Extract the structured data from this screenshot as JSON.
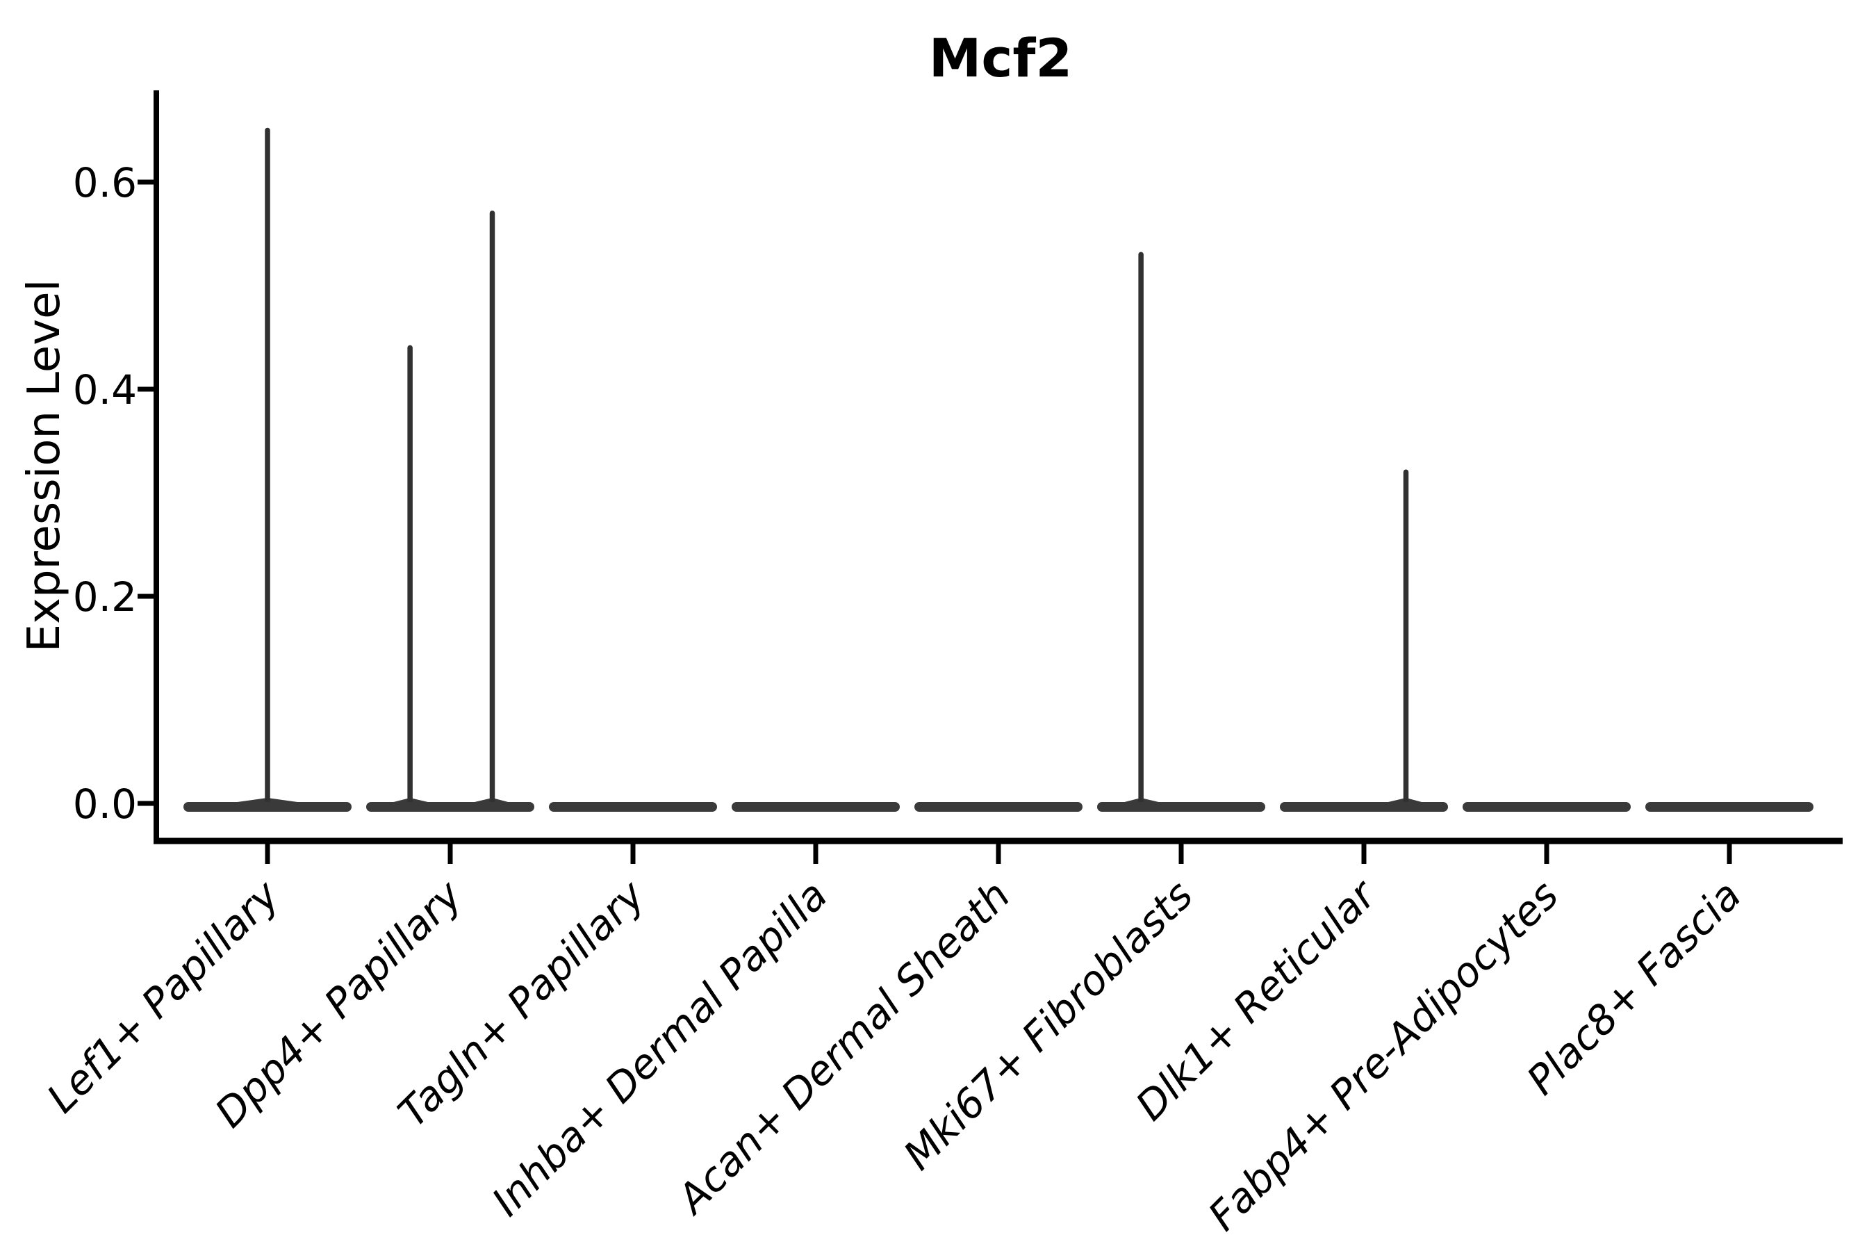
{
  "chart_data": {
    "type": "violin",
    "title": "Mcf2",
    "xlabel": "",
    "ylabel": "Expression Level",
    "ylim": [
      0,
      0.69
    ],
    "yticks": [
      0.0,
      0.2,
      0.4,
      0.6
    ],
    "ytick_labels": [
      "0.0",
      "0.2",
      "0.4",
      "0.6"
    ],
    "grid": false,
    "legend": "none",
    "colors": {
      "violin": "#3a3a3a",
      "spike": "#313131",
      "axis": "#000000",
      "text": "#000000",
      "background": "#ffffff"
    },
    "categories": [
      "Lef1+ Papillary",
      "Dpp4+ Papillary",
      "Tagln+ Papillary",
      "Inhba+ Dermal Papilla",
      "Acan+ Dermal Sheath",
      "Mki67+ Fibroblasts",
      "Dlk1+ Reticular",
      "Fabp4+ Pre-Adipocytes",
      "Plac8+ Fascia"
    ],
    "violins": [
      {
        "category": "Lef1+ Papillary",
        "base_value": 0.0,
        "spikes": [
          {
            "value": 0.65,
            "x_offset_frac": 0.0
          }
        ]
      },
      {
        "category": "Dpp4+ Papillary",
        "base_value": 0.0,
        "spikes": [
          {
            "value": 0.44,
            "x_offset_frac": -0.22
          },
          {
            "value": 0.57,
            "x_offset_frac": 0.23
          }
        ]
      },
      {
        "category": "Tagln+ Papillary",
        "base_value": 0.0,
        "spikes": []
      },
      {
        "category": "Inhba+ Dermal Papilla",
        "base_value": 0.0,
        "spikes": []
      },
      {
        "category": "Acan+ Dermal Sheath",
        "base_value": 0.0,
        "spikes": []
      },
      {
        "category": "Mki67+ Fibroblasts",
        "base_value": 0.0,
        "spikes": [
          {
            "value": 0.53,
            "x_offset_frac": -0.22
          }
        ]
      },
      {
        "category": "Dlk1+ Reticular",
        "base_value": 0.0,
        "spikes": [
          {
            "value": 0.32,
            "x_offset_frac": 0.23
          }
        ]
      },
      {
        "category": "Fabp4+ Pre-Adipocytes",
        "base_value": 0.0,
        "spikes": []
      },
      {
        "category": "Plac8+ Fascia",
        "base_value": 0.0,
        "spikes": []
      }
    ]
  }
}
